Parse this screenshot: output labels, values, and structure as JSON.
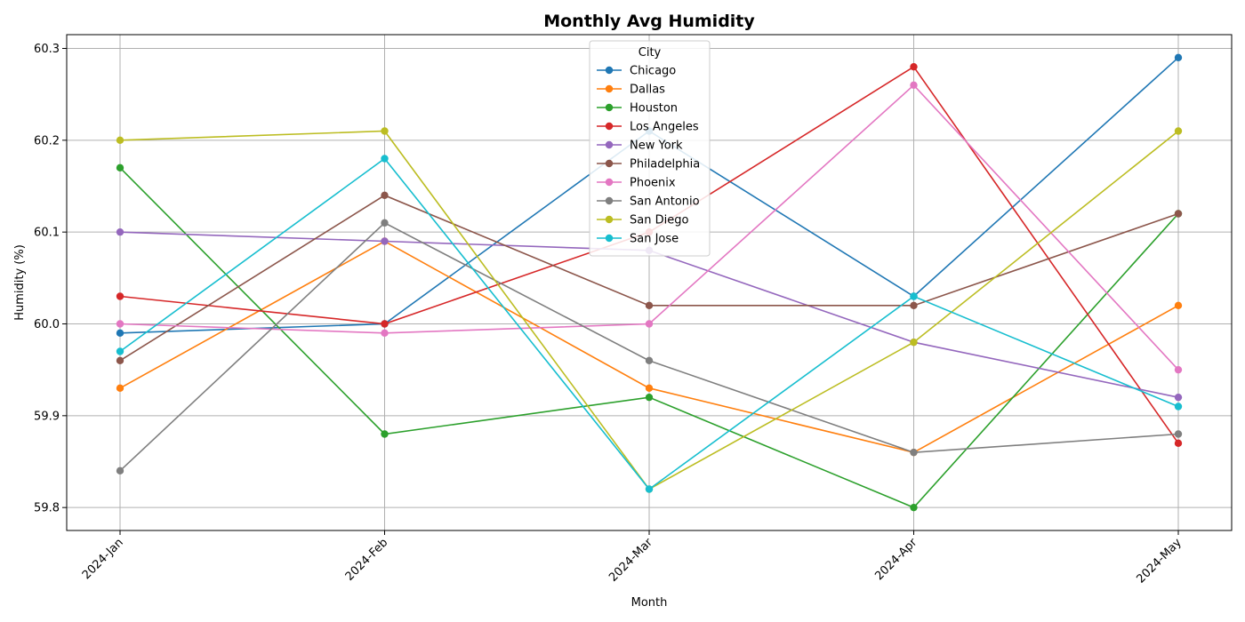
{
  "chart_data": {
    "type": "line",
    "title": "Monthly Avg Humidity",
    "xlabel": "Month",
    "ylabel": "Humidity (%)",
    "categories": [
      "2024-Jan",
      "2024-Feb",
      "2024-Mar",
      "2024-Apr",
      "2024-May"
    ],
    "ylim": [
      59.775,
      60.315
    ],
    "yticks": [
      59.8,
      59.9,
      60.0,
      60.1,
      60.2,
      60.3
    ],
    "ytick_labels": [
      "59.8",
      "59.9",
      "60.0",
      "60.1",
      "60.2",
      "60.3"
    ],
    "grid": true,
    "legend": {
      "title": "City",
      "placement": "top-center"
    },
    "series": [
      {
        "name": "Chicago",
        "color": "#1f77b4",
        "values": [
          59.99,
          60.0,
          60.21,
          60.03,
          60.29
        ]
      },
      {
        "name": "Dallas",
        "color": "#ff7f0e",
        "values": [
          59.93,
          60.09,
          59.93,
          59.86,
          60.02
        ]
      },
      {
        "name": "Houston",
        "color": "#2ca02c",
        "values": [
          60.17,
          59.88,
          59.92,
          59.8,
          60.12
        ]
      },
      {
        "name": "Los Angeles",
        "color": "#d62728",
        "values": [
          60.03,
          60.0,
          60.1,
          60.28,
          59.87
        ]
      },
      {
        "name": "New York",
        "color": "#9467bd",
        "values": [
          60.1,
          60.09,
          60.08,
          59.98,
          59.92
        ]
      },
      {
        "name": "Philadelphia",
        "color": "#8c564b",
        "values": [
          59.96,
          60.14,
          60.02,
          60.02,
          60.12
        ]
      },
      {
        "name": "Phoenix",
        "color": "#e377c2",
        "values": [
          60.0,
          59.99,
          60.0,
          60.26,
          59.95
        ]
      },
      {
        "name": "San Antonio",
        "color": "#7f7f7f",
        "values": [
          59.84,
          60.11,
          59.96,
          59.86,
          59.88
        ]
      },
      {
        "name": "San Diego",
        "color": "#bcbd22",
        "values": [
          60.2,
          60.21,
          59.82,
          59.98,
          60.21
        ]
      },
      {
        "name": "San Jose",
        "color": "#17becf",
        "values": [
          59.97,
          60.18,
          59.82,
          60.03,
          59.91
        ]
      }
    ]
  }
}
